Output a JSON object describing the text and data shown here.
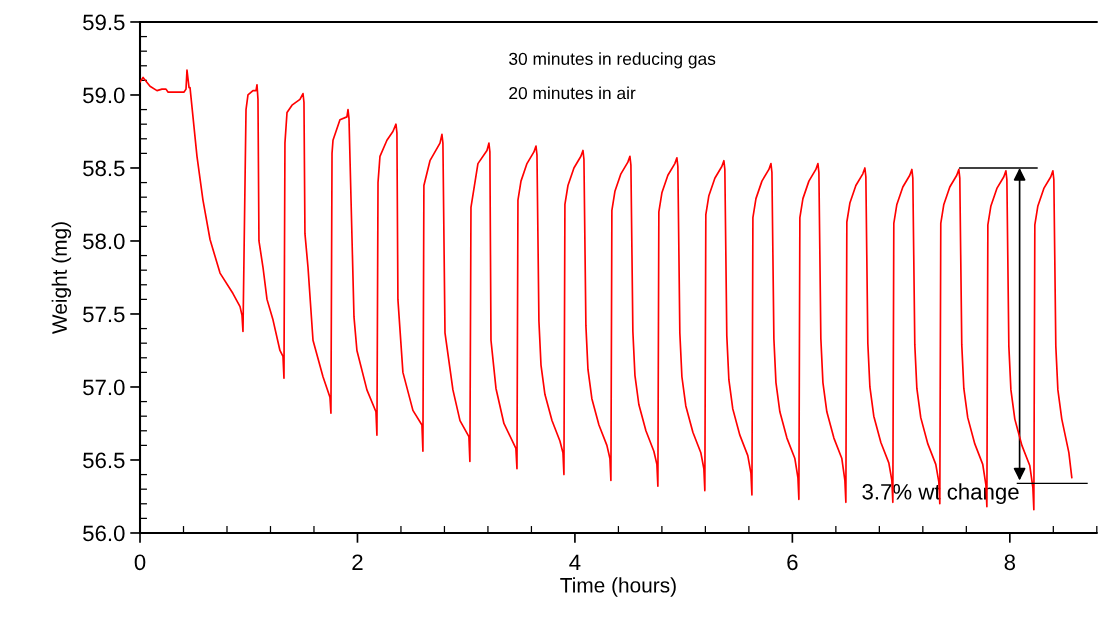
{
  "chart_data": {
    "type": "line",
    "xlabel": "Time (hours)",
    "ylabel": "Weight (mg)",
    "xlim": [
      0,
      8.8
    ],
    "ylim": [
      56.0,
      59.5
    ],
    "xticks": [
      0,
      {
        "value": 0.4,
        "label": null
      },
      {
        "value": 0.8,
        "label": null
      },
      {
        "value": 1.2,
        "label": null
      },
      {
        "value": 1.6,
        "label": null
      },
      2,
      {
        "value": 2.4,
        "label": null
      },
      {
        "value": 2.8,
        "label": null
      },
      {
        "value": 3.2,
        "label": null
      },
      {
        "value": 3.6,
        "label": null
      },
      4,
      {
        "value": 4.4,
        "label": null
      },
      {
        "value": 4.8,
        "label": null
      },
      {
        "value": 5.2,
        "label": null
      },
      {
        "value": 5.6,
        "label": null
      },
      6,
      {
        "value": 6.4,
        "label": null
      },
      {
        "value": 6.8,
        "label": null
      },
      {
        "value": 7.2,
        "label": null
      },
      {
        "value": 7.6,
        "label": null
      },
      8,
      {
        "value": 8.4,
        "label": null
      },
      {
        "value": 8.8,
        "label": null
      }
    ],
    "yticks": [
      {
        "value": 56.0,
        "label": "56.0"
      },
      {
        "value": 56.1,
        "label": null
      },
      {
        "value": 56.2,
        "label": null
      },
      {
        "value": 56.3,
        "label": null
      },
      {
        "value": 56.4,
        "label": null
      },
      {
        "value": 56.5,
        "label": "56.5"
      },
      {
        "value": 56.6,
        "label": null
      },
      {
        "value": 56.7,
        "label": null
      },
      {
        "value": 56.8,
        "label": null
      },
      {
        "value": 56.9,
        "label": null
      },
      {
        "value": 57.0,
        "label": "57.0"
      },
      {
        "value": 57.1,
        "label": null
      },
      {
        "value": 57.2,
        "label": null
      },
      {
        "value": 57.3,
        "label": null
      },
      {
        "value": 57.4,
        "label": null
      },
      {
        "value": 57.5,
        "label": "57.5"
      },
      {
        "value": 57.6,
        "label": null
      },
      {
        "value": 57.7,
        "label": null
      },
      {
        "value": 57.8,
        "label": null
      },
      {
        "value": 57.9,
        "label": null
      },
      {
        "value": 58.0,
        "label": "58.0"
      },
      {
        "value": 58.1,
        "label": null
      },
      {
        "value": 58.2,
        "label": null
      },
      {
        "value": 58.3,
        "label": null
      },
      {
        "value": 58.4,
        "label": null
      },
      {
        "value": 58.5,
        "label": "58.5"
      },
      {
        "value": 58.6,
        "label": null
      },
      {
        "value": 58.7,
        "label": null
      },
      {
        "value": 58.8,
        "label": null
      },
      {
        "value": 58.9,
        "label": null
      },
      {
        "value": 59.0,
        "label": "59.0"
      },
      {
        "value": 59.1,
        "label": null
      },
      {
        "value": 59.2,
        "label": null
      },
      {
        "value": 59.3,
        "label": null
      },
      {
        "value": 59.4,
        "label": null
      },
      {
        "value": 59.5,
        "label": "59.5"
      }
    ],
    "marker": "none",
    "line_style": "solid",
    "series": [
      {
        "color": "#ff0000",
        "x": [
          0.0,
          0.028,
          0.092,
          0.156,
          0.202,
          0.239,
          0.257,
          0.405,
          0.423,
          0.432,
          0.451,
          0.46,
          0.524,
          0.579,
          0.644,
          0.736,
          0.855,
          0.92,
          0.938,
          0.947,
          0.975,
          0.993,
          1.039,
          1.067,
          1.076,
          1.085,
          1.094,
          1.131,
          1.168,
          1.223,
          1.287,
          1.315,
          1.324,
          1.333,
          1.352,
          1.398,
          1.471,
          1.499,
          1.508,
          1.517,
          1.545,
          1.591,
          1.683,
          1.747,
          1.756,
          1.766,
          1.775,
          1.839,
          1.903,
          1.913,
          1.922,
          1.968,
          1.995,
          2.087,
          2.17,
          2.179,
          2.189,
          2.207,
          2.271,
          2.326,
          2.354,
          2.363,
          2.372,
          2.418,
          2.51,
          2.593,
          2.602,
          2.611,
          2.667,
          2.759,
          2.777,
          2.786,
          2.805,
          2.878,
          2.943,
          3.025,
          3.034,
          3.044,
          3.108,
          3.191,
          3.209,
          3.218,
          3.228,
          3.274,
          3.347,
          3.457,
          3.467,
          3.476,
          3.504,
          3.559,
          3.623,
          3.642,
          3.651,
          3.669,
          3.688,
          3.724,
          3.789,
          3.862,
          3.89,
          3.899,
          3.908,
          3.936,
          3.991,
          4.055,
          4.074,
          4.083,
          4.101,
          4.12,
          4.156,
          4.221,
          4.294,
          4.322,
          4.331,
          4.34,
          4.368,
          4.423,
          4.487,
          4.506,
          4.515,
          4.533,
          4.552,
          4.588,
          4.653,
          4.726,
          4.754,
          4.763,
          4.772,
          4.8,
          4.855,
          4.919,
          4.938,
          4.947,
          4.965,
          4.984,
          5.02,
          5.085,
          5.158,
          5.186,
          5.195,
          5.204,
          5.232,
          5.287,
          5.351,
          5.37,
          5.379,
          5.397,
          5.416,
          5.452,
          5.517,
          5.59,
          5.619,
          5.628,
          5.637,
          5.665,
          5.72,
          5.784,
          5.803,
          5.812,
          5.83,
          5.849,
          5.885,
          5.95,
          6.023,
          6.051,
          6.06,
          6.069,
          6.097,
          6.152,
          6.216,
          6.235,
          6.244,
          6.262,
          6.281,
          6.317,
          6.382,
          6.455,
          6.483,
          6.492,
          6.501,
          6.529,
          6.584,
          6.648,
          6.667,
          6.676,
          6.694,
          6.713,
          6.749,
          6.814,
          6.887,
          6.915,
          6.924,
          6.933,
          6.961,
          7.016,
          7.08,
          7.099,
          7.108,
          7.126,
          7.145,
          7.181,
          7.246,
          7.319,
          7.347,
          7.356,
          7.365,
          7.393,
          7.448,
          7.512,
          7.531,
          7.54,
          7.558,
          7.577,
          7.613,
          7.678,
          7.751,
          7.78,
          7.789,
          7.798,
          7.826,
          7.881,
          7.945,
          7.964,
          7.973,
          7.991,
          8.01,
          8.046,
          8.111,
          8.184,
          8.212,
          8.221,
          8.23,
          8.258,
          8.313,
          8.377,
          8.396,
          8.405,
          8.423,
          8.442,
          8.478,
          8.543,
          8.57
        ],
        "values": [
          59.09,
          59.12,
          59.06,
          59.03,
          59.04,
          59.04,
          59.02,
          59.02,
          59.04,
          59.17,
          59.05,
          59.05,
          58.58,
          58.28,
          58.01,
          57.78,
          57.64,
          57.55,
          57.49,
          57.38,
          58.9,
          59.0,
          59.03,
          59.03,
          59.07,
          58.97,
          58.0,
          57.82,
          57.6,
          57.46,
          57.25,
          57.21,
          57.06,
          58.67,
          58.88,
          58.93,
          58.97,
          59.01,
          58.95,
          58.05,
          57.82,
          57.32,
          57.07,
          56.93,
          56.82,
          58.6,
          58.69,
          58.83,
          58.85,
          58.9,
          58.84,
          57.48,
          57.25,
          56.98,
          56.83,
          56.67,
          58.4,
          58.58,
          58.69,
          58.75,
          58.8,
          58.74,
          57.6,
          57.1,
          56.84,
          56.74,
          56.56,
          58.38,
          58.55,
          58.67,
          58.73,
          58.67,
          57.37,
          56.98,
          56.77,
          56.66,
          56.49,
          58.23,
          58.53,
          58.62,
          58.67,
          58.61,
          57.32,
          56.99,
          56.75,
          56.58,
          56.44,
          58.28,
          58.41,
          58.53,
          58.61,
          58.65,
          58.59,
          57.45,
          57.15,
          56.95,
          56.77,
          56.63,
          56.55,
          56.4,
          58.25,
          58.38,
          58.5,
          58.58,
          58.62,
          58.56,
          57.42,
          57.12,
          56.92,
          56.74,
          56.6,
          56.51,
          56.36,
          58.21,
          58.34,
          58.46,
          58.54,
          58.58,
          58.52,
          57.38,
          57.08,
          56.88,
          56.7,
          56.56,
          56.47,
          56.32,
          58.2,
          58.33,
          58.45,
          58.53,
          58.57,
          58.51,
          57.37,
          57.07,
          56.87,
          56.69,
          56.55,
          56.44,
          56.29,
          58.18,
          58.31,
          58.43,
          58.51,
          58.55,
          58.49,
          57.35,
          57.05,
          56.85,
          56.67,
          56.53,
          56.41,
          56.26,
          58.16,
          58.29,
          58.41,
          58.49,
          58.53,
          58.47,
          57.33,
          57.03,
          56.83,
          56.65,
          56.51,
          56.38,
          56.23,
          58.16,
          58.29,
          58.41,
          58.49,
          58.53,
          58.47,
          57.33,
          57.03,
          56.83,
          56.65,
          56.51,
          56.36,
          56.21,
          58.13,
          58.26,
          58.38,
          58.46,
          58.5,
          58.44,
          57.3,
          57.0,
          56.8,
          56.62,
          56.48,
          56.36,
          56.21,
          58.12,
          58.25,
          58.37,
          58.45,
          58.49,
          58.43,
          57.29,
          56.99,
          56.79,
          56.61,
          56.47,
          56.35,
          56.2,
          58.12,
          58.25,
          58.37,
          58.45,
          58.49,
          58.43,
          57.29,
          56.99,
          56.79,
          56.61,
          56.47,
          56.33,
          56.18,
          58.11,
          58.24,
          58.36,
          58.44,
          58.48,
          58.42,
          57.28,
          56.98,
          56.78,
          56.6,
          56.46,
          56.31,
          56.16,
          58.11,
          58.24,
          58.36,
          58.44,
          58.48,
          58.42,
          57.28,
          56.98,
          56.78,
          56.55,
          56.38
        ]
      },
      {
        "color": "#000000",
        "x": [
          7.54,
          8.25
        ],
        "values": [
          58.5,
          58.5
        ]
      },
      {
        "color": "#000000",
        "x": [
          8.07,
          8.71
        ],
        "values": [
          56.34,
          56.34
        ]
      }
    ],
    "annotations": [
      "30 minutes in reducing gas",
      "20 minutes in air",
      {
        "text": "3.7% wt change",
        "x": 8.09,
        "y": 56.34
      }
    ]
  }
}
